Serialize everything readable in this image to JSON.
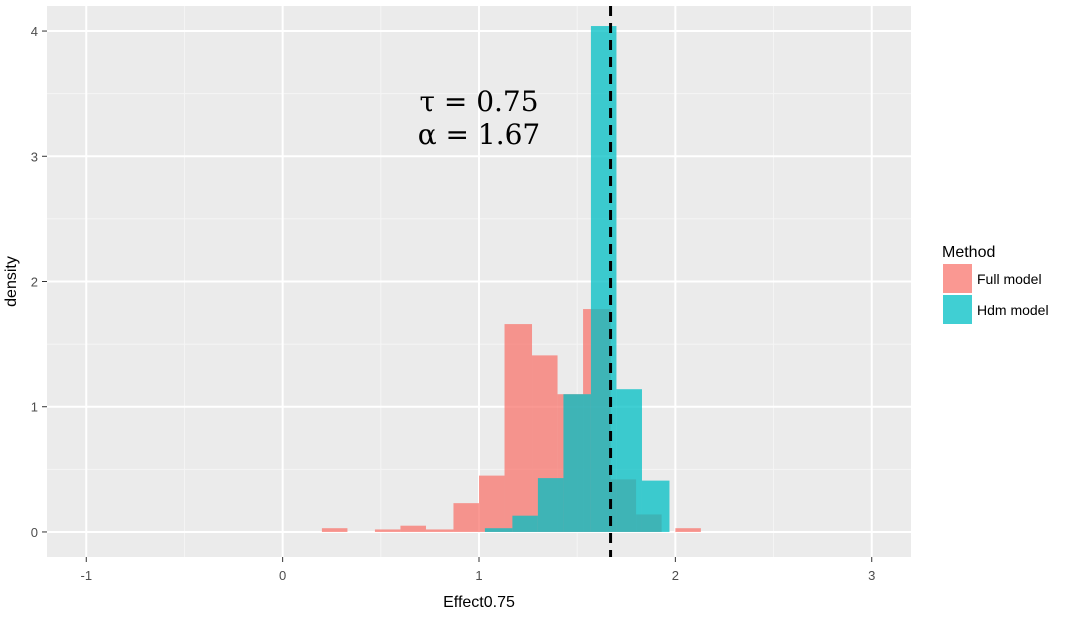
{
  "chart_data": {
    "type": "histogram",
    "xlabel": "Effect0.75",
    "ylabel": "density",
    "xlim": [
      -1.2,
      3.2
    ],
    "ylim": [
      -0.2,
      4.2
    ],
    "x_ticks": [
      -1,
      0,
      1,
      2,
      3
    ],
    "y_ticks": [
      0,
      1,
      2,
      3,
      4
    ],
    "grid": true,
    "bin_width": 0.1333,
    "vline": {
      "x": 1.67,
      "style": "dashed",
      "color": "#000000"
    },
    "annotation": {
      "lines": [
        "τ = 0.75",
        "α = 1.67"
      ],
      "x": 1.0,
      "y": 3.2
    },
    "legend": {
      "title": "Method",
      "position": "right"
    },
    "series": [
      {
        "name": "Full model",
        "color": "#F8766D",
        "bins": [
          {
            "x0": 0.2,
            "x1": 0.33,
            "density": 0.03
          },
          {
            "x0": 0.47,
            "x1": 0.6,
            "density": 0.02
          },
          {
            "x0": 0.6,
            "x1": 0.73,
            "density": 0.05
          },
          {
            "x0": 0.73,
            "x1": 0.87,
            "density": 0.02
          },
          {
            "x0": 0.87,
            "x1": 1.0,
            "density": 0.23
          },
          {
            "x0": 1.0,
            "x1": 1.13,
            "density": 0.45
          },
          {
            "x0": 1.13,
            "x1": 1.27,
            "density": 1.66
          },
          {
            "x0": 1.27,
            "x1": 1.4,
            "density": 1.41
          },
          {
            "x0": 1.4,
            "x1": 1.53,
            "density": 1.1
          },
          {
            "x0": 1.53,
            "x1": 1.67,
            "density": 1.78
          },
          {
            "x0": 1.67,
            "x1": 1.8,
            "density": 0.42
          },
          {
            "x0": 1.8,
            "x1": 1.93,
            "density": 0.14
          },
          {
            "x0": 2.0,
            "x1": 2.13,
            "density": 0.03
          }
        ]
      },
      {
        "name": "Hdm model",
        "color": "#00BFC4",
        "bins": [
          {
            "x0": 1.03,
            "x1": 1.17,
            "density": 0.03
          },
          {
            "x0": 1.17,
            "x1": 1.3,
            "density": 0.13
          },
          {
            "x0": 1.3,
            "x1": 1.43,
            "density": 0.43
          },
          {
            "x0": 1.43,
            "x1": 1.57,
            "density": 1.1
          },
          {
            "x0": 1.57,
            "x1": 1.7,
            "density": 4.04
          },
          {
            "x0": 1.7,
            "x1": 1.83,
            "density": 1.14
          },
          {
            "x0": 1.83,
            "x1": 1.97,
            "density": 0.41
          }
        ]
      }
    ]
  }
}
